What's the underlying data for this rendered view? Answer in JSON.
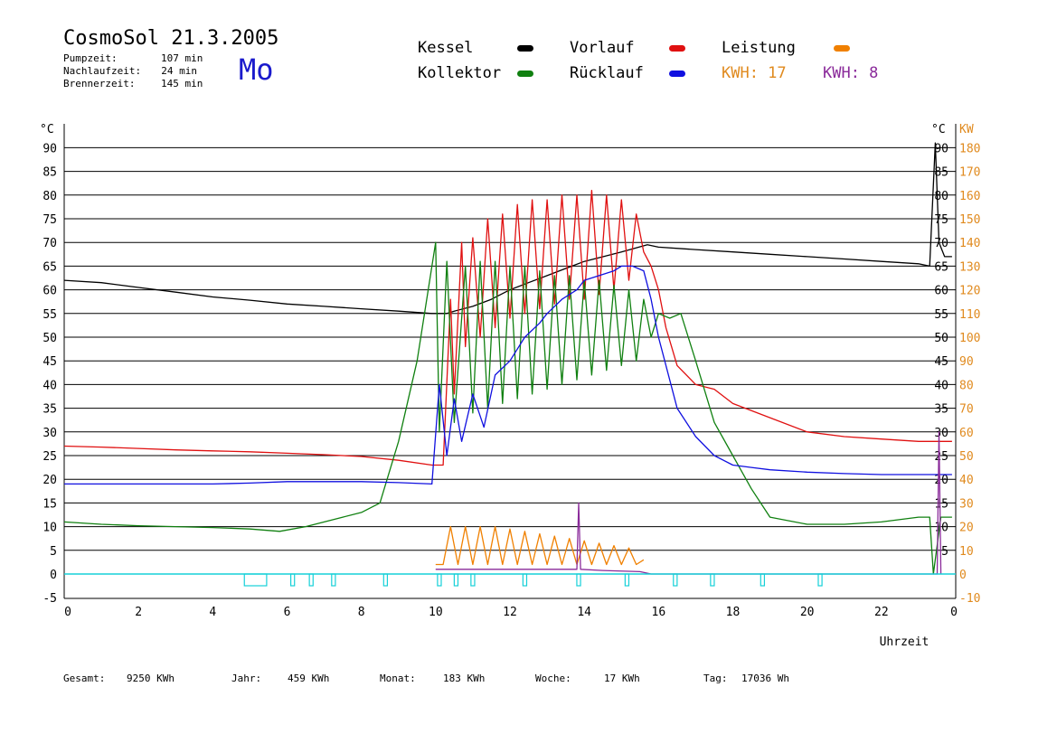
{
  "header": {
    "title": "CosmoSol 21.3.2005",
    "stats": [
      {
        "label": "Pumpzeit:",
        "value": "107 min"
      },
      {
        "label": "Nachlaufzeit:",
        "value": "24 min"
      },
      {
        "label": "Brennerzeit:",
        "value": "145 min"
      }
    ],
    "day": "Mo"
  },
  "legend": {
    "items": [
      {
        "label": "Kessel",
        "color": "#000000"
      },
      {
        "label": "Vorlauf",
        "color": "#e01010"
      },
      {
        "label": "Leistung",
        "color": "#f08000"
      },
      {
        "label": "Kollektor",
        "color": "#108010"
      },
      {
        "label": "Rücklauf",
        "color": "#1010e0"
      }
    ],
    "kwh_1": {
      "text": "KWH: 17",
      "color": "#e08a1e"
    },
    "kwh_2": {
      "text": "KWH: 8",
      "color": "#8a2a9a"
    }
  },
  "footer": {
    "gesamt_label": "Gesamt:",
    "gesamt_value": "9250 KWh",
    "jahr_label": "Jahr:",
    "jahr_value": "459 KWh",
    "monat_label": "Monat:",
    "monat_value": "183 KWh",
    "woche_label": "Woche:",
    "woche_value": "17 KWh",
    "tag_label": "Tag:",
    "tag_value": "17036 Wh"
  },
  "chart_data": {
    "type": "line",
    "xlabel": "Uhrzeit",
    "x_ticks": [
      "0",
      "2",
      "4",
      "6",
      "8",
      "10",
      "12",
      "14",
      "16",
      "18",
      "20",
      "22",
      "0"
    ],
    "xlim": [
      0,
      24
    ],
    "y_left_label": "°C",
    "y_left_ticks": [
      "-5",
      "0",
      "5",
      "10",
      "15",
      "20",
      "25",
      "30",
      "35",
      "40",
      "45",
      "50",
      "55",
      "60",
      "65",
      "70",
      "75",
      "80",
      "85",
      "90"
    ],
    "ylim_left": [
      -5,
      95
    ],
    "y_right1_label": "°C",
    "y_right1_ticks": [
      "5",
      "10",
      "15",
      "20",
      "25",
      "30",
      "35",
      "40",
      "45",
      "50",
      "55",
      "60",
      "65",
      "70",
      "75",
      "80",
      "85",
      "90"
    ],
    "y_right2_label": "KW",
    "y_right2_ticks": [
      "-10",
      "0",
      "10",
      "20",
      "30",
      "40",
      "50",
      "60",
      "70",
      "80",
      "90",
      "100",
      "110",
      "120",
      "130",
      "140",
      "150",
      "160",
      "170",
      "180"
    ],
    "grid": true,
    "series": [
      {
        "name": "Kessel",
        "color": "#000000",
        "x": [
          0,
          1,
          2,
          3,
          4,
          5,
          6,
          7,
          8,
          9,
          9.9,
          10.3,
          10.5,
          11,
          11.5,
          12,
          12.5,
          13,
          13.5,
          14,
          15,
          15.7,
          16,
          17,
          18,
          19,
          20,
          21,
          22,
          23,
          23.3,
          23.45,
          23.55,
          23.7,
          23.9
        ],
        "y": [
          62,
          61.5,
          60.5,
          59.5,
          58.5,
          57.8,
          57,
          56.5,
          56,
          55.5,
          55,
          55,
          55.5,
          56.5,
          58,
          60,
          61.5,
          63,
          64.5,
          66,
          68,
          69.5,
          69,
          68.5,
          68,
          67.5,
          67,
          66.5,
          66,
          65.5,
          65,
          91,
          70,
          67,
          67
        ]
      },
      {
        "name": "Vorlauf",
        "color": "#e01010",
        "x": [
          0,
          1,
          2,
          3,
          4,
          5,
          6,
          7,
          8,
          9,
          9.9,
          10.2,
          10.4,
          10.5,
          10.7,
          10.8,
          11.0,
          11.2,
          11.4,
          11.6,
          11.8,
          12.0,
          12.2,
          12.4,
          12.6,
          12.8,
          13.0,
          13.2,
          13.4,
          13.6,
          13.8,
          14.0,
          14.2,
          14.4,
          14.6,
          14.8,
          15.0,
          15.2,
          15.4,
          15.6,
          15.8,
          16.0,
          16.2,
          16.5,
          17,
          17.5,
          18,
          19,
          20,
          21,
          22,
          23,
          23.9
        ],
        "y": [
          27,
          26.8,
          26.5,
          26.2,
          26,
          25.8,
          25.5,
          25.2,
          24.8,
          24,
          23,
          23,
          58,
          38,
          70,
          48,
          71,
          50,
          75,
          52,
          76,
          54,
          78,
          55,
          79,
          56,
          79,
          57,
          80,
          58,
          80,
          58,
          81,
          59,
          80,
          60,
          79,
          62,
          76,
          68,
          65,
          60,
          52,
          44,
          40,
          39,
          36,
          33,
          30,
          29,
          28.5,
          28,
          28
        ]
      },
      {
        "name": "Kollektor",
        "color": "#108010",
        "x": [
          0,
          1,
          2,
          3,
          4,
          5,
          5.8,
          6.5,
          7,
          7.5,
          8,
          8.5,
          9,
          9.5,
          10.0,
          10.1,
          10.3,
          10.5,
          10.8,
          11.0,
          11.2,
          11.4,
          11.6,
          11.8,
          12.0,
          12.2,
          12.4,
          12.6,
          12.8,
          13.0,
          13.2,
          13.4,
          13.6,
          13.8,
          14.0,
          14.2,
          14.4,
          14.6,
          14.8,
          15.0,
          15.2,
          15.4,
          15.6,
          15.8,
          16.0,
          16.3,
          16.6,
          17,
          17.5,
          18,
          18.5,
          19,
          20,
          21,
          22,
          23,
          23.3,
          23.4,
          23.6,
          23.9
        ],
        "y": [
          11,
          10.5,
          10.2,
          10,
          9.8,
          9.5,
          9,
          10,
          11,
          12,
          13,
          15,
          28,
          45,
          70,
          30,
          66,
          32,
          65,
          34,
          66,
          35,
          66,
          36,
          65,
          37,
          65,
          38,
          64,
          39,
          63,
          40,
          63,
          41,
          62,
          42,
          62,
          43,
          61,
          44,
          60,
          45,
          58,
          50,
          55,
          54,
          55,
          45,
          32,
          25,
          18,
          12,
          10.5,
          10.5,
          11,
          12,
          12,
          0,
          12,
          12
        ]
      },
      {
        "name": "Rücklauf",
        "color": "#1010e0",
        "x": [
          0,
          1,
          2,
          3,
          4,
          5,
          6,
          7,
          8,
          9,
          9.9,
          10.1,
          10.3,
          10.5,
          10.7,
          11.0,
          11.3,
          11.6,
          12.0,
          12.4,
          12.8,
          13.0,
          13.4,
          13.8,
          14.0,
          14.4,
          14.8,
          15.0,
          15.3,
          15.6,
          15.8,
          16.0,
          16.5,
          17,
          17.5,
          18,
          18.5,
          19,
          20,
          21,
          22,
          23,
          23.9
        ],
        "y": [
          19,
          19,
          19,
          19,
          19,
          19.2,
          19.5,
          19.5,
          19.5,
          19.3,
          19,
          40,
          25,
          37,
          28,
          38,
          31,
          42,
          45,
          50,
          53,
          55,
          58,
          60,
          62,
          63,
          64,
          65,
          65,
          64,
          58,
          50,
          35,
          29,
          25,
          23,
          22.5,
          22,
          21.5,
          21.2,
          21,
          21,
          21
        ]
      },
      {
        "name": "Leistung",
        "color": "#f08000",
        "unit": "KW",
        "x": [
          10.0,
          10.2,
          10.4,
          10.6,
          10.8,
          11.0,
          11.2,
          11.4,
          11.6,
          11.8,
          12.0,
          12.2,
          12.4,
          12.6,
          12.8,
          13.0,
          13.2,
          13.4,
          13.6,
          13.8,
          14.0,
          14.2,
          14.4,
          14.6,
          14.8,
          15.0,
          15.2,
          15.4,
          15.6
        ],
        "y": [
          4,
          4,
          20,
          4,
          20,
          4,
          20,
          4,
          20,
          4,
          19,
          4,
          18,
          4,
          17,
          4,
          16,
          4,
          15,
          4,
          14,
          4,
          13,
          4,
          12,
          4,
          11,
          4,
          6
        ]
      },
      {
        "name": "",
        "color": "#8a2a9a",
        "x": [
          10.0,
          11.0,
          12.0,
          13.0,
          13.8,
          13.85,
          13.9,
          14.5,
          15.5,
          15.8,
          23.5,
          23.55,
          23.6
        ],
        "y": [
          2,
          2,
          2,
          2,
          2,
          30,
          2,
          1.5,
          1,
          0,
          0,
          60,
          0
        ]
      },
      {
        "name": "",
        "color": "#16d0d8",
        "type": "pump-status",
        "intervals": [
          [
            4.85,
            5.45
          ],
          [
            6.1,
            6.2
          ],
          [
            6.6,
            6.7
          ],
          [
            7.2,
            7.3
          ],
          [
            8.6,
            8.7
          ],
          [
            10.05,
            10.15
          ],
          [
            10.5,
            10.6
          ],
          [
            10.95,
            11.05
          ],
          [
            12.35,
            12.45
          ],
          [
            13.8,
            13.9
          ],
          [
            15.1,
            15.2
          ],
          [
            16.4,
            16.5
          ],
          [
            17.4,
            17.5
          ],
          [
            18.75,
            18.85
          ],
          [
            20.3,
            20.4
          ]
        ]
      }
    ]
  }
}
